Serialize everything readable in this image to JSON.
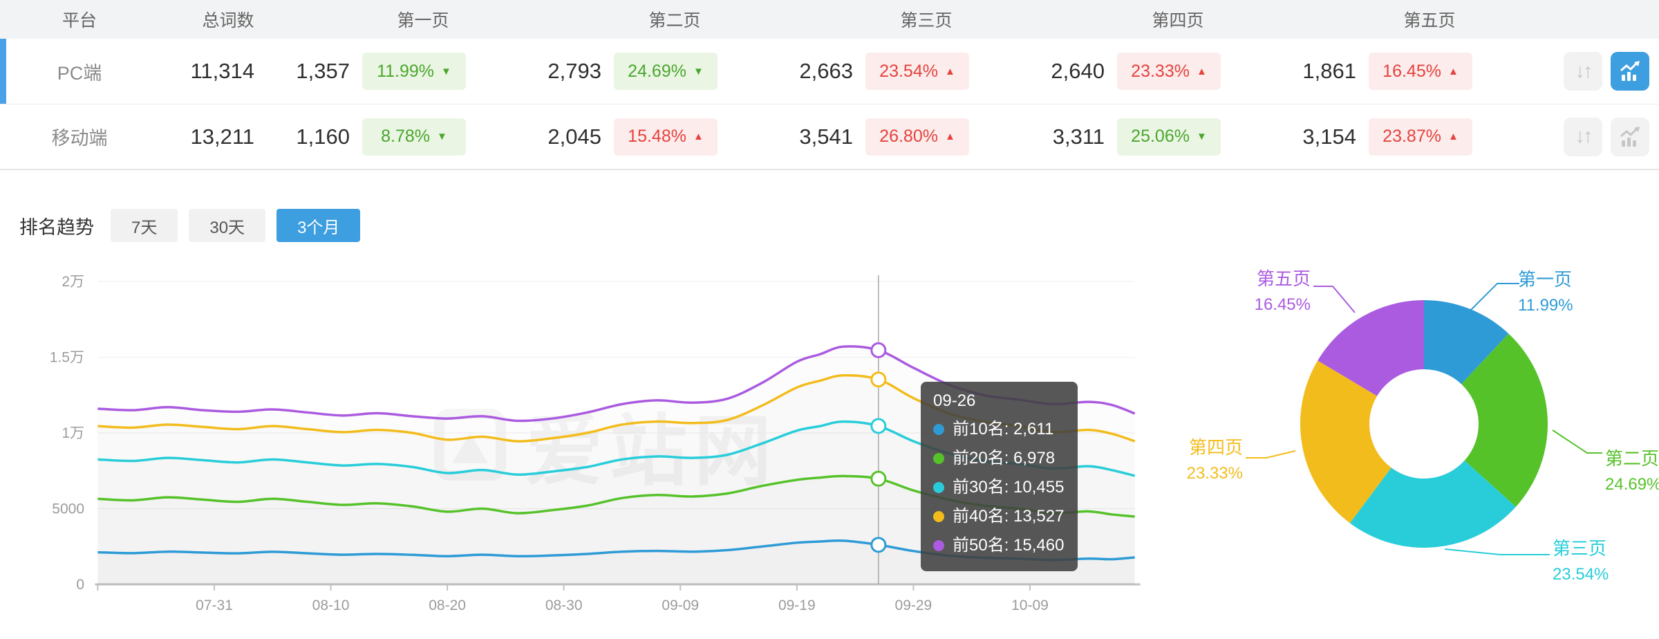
{
  "table": {
    "headers": [
      "平台",
      "总词数",
      "第一页",
      "第二页",
      "第三页",
      "第四页",
      "第五页"
    ],
    "rows": [
      {
        "platform": "PC端",
        "total": "11,314",
        "selected": true,
        "pages": [
          {
            "count": "1,357",
            "pct": "11.99%",
            "dir": "down",
            "tone": "green"
          },
          {
            "count": "2,793",
            "pct": "24.69%",
            "dir": "down",
            "tone": "green"
          },
          {
            "count": "2,663",
            "pct": "23.54%",
            "dir": "up",
            "tone": "red"
          },
          {
            "count": "2,640",
            "pct": "23.33%",
            "dir": "up",
            "tone": "red"
          },
          {
            "count": "1,861",
            "pct": "16.45%",
            "dir": "up",
            "tone": "red"
          }
        ],
        "actions": {
          "sort_active": false,
          "trend_active": true
        }
      },
      {
        "platform": "移动端",
        "total": "13,211",
        "selected": false,
        "pages": [
          {
            "count": "1,160",
            "pct": "8.78%",
            "dir": "down",
            "tone": "green"
          },
          {
            "count": "2,045",
            "pct": "15.48%",
            "dir": "up",
            "tone": "red"
          },
          {
            "count": "3,541",
            "pct": "26.80%",
            "dir": "up",
            "tone": "red"
          },
          {
            "count": "3,311",
            "pct": "25.06%",
            "dir": "down",
            "tone": "green"
          },
          {
            "count": "3,154",
            "pct": "23.87%",
            "dir": "up",
            "tone": "red"
          }
        ],
        "actions": {
          "sort_active": false,
          "trend_active": false
        }
      }
    ]
  },
  "trend": {
    "title": "排名趋势",
    "tabs": [
      {
        "label": "7天",
        "active": false
      },
      {
        "label": "30天",
        "active": false
      },
      {
        "label": "3个月",
        "active": true
      }
    ]
  },
  "tooltip": {
    "title": "09-26",
    "items": [
      {
        "label": "前10名",
        "value": "2,611",
        "text": "前10名: 2,611",
        "color": "#2e9bd6"
      },
      {
        "label": "前20名",
        "value": "6,978",
        "text": "前20名: 6,978",
        "color": "#56c22a"
      },
      {
        "label": "前30名",
        "value": "10,455",
        "text": "前30名: 10,455",
        "color": "#28cdd9"
      },
      {
        "label": "前40名",
        "value": "13,527",
        "text": "前40名: 13,527",
        "color": "#f3bc1d"
      },
      {
        "label": "前50名",
        "value": "15,460",
        "text": "前50名: 15,460",
        "color": "#aa5be0"
      }
    ]
  },
  "watermark": "爱站网",
  "colors": {
    "accent": "#3d9ee0",
    "badge_green_text": "#4ba62f",
    "badge_green_bg": "#eaf6e3",
    "badge_red_text": "#e5433e",
    "badge_red_bg": "#fcecec",
    "selected_row_bar": "#4ba1e8"
  },
  "chart_data": [
    {
      "type": "line",
      "title": "排名趋势（3个月）",
      "grid": true,
      "legend_position": "none",
      "x_axis": {
        "tick_labels": [
          "07-31",
          "08-10",
          "08-20",
          "08-30",
          "09-09",
          "09-19",
          "09-29",
          "10-09"
        ],
        "tick_days": [
          10,
          20,
          30,
          40,
          50,
          60,
          70,
          80
        ],
        "day_range": [
          0,
          89
        ]
      },
      "y_axis": {
        "tick_labels": [
          "0",
          "5000",
          "1万",
          "1.5万",
          "2万"
        ],
        "tick_values": [
          0,
          5000,
          10000,
          15000,
          20000
        ],
        "range": [
          0,
          20000
        ]
      },
      "highlight": {
        "date": "09-26",
        "day": 67
      },
      "days": [
        0,
        3,
        6,
        9,
        12,
        15,
        18,
        21,
        24,
        27,
        30,
        33,
        36,
        39,
        42,
        45,
        48,
        51,
        54,
        57,
        60,
        62,
        64,
        67,
        70,
        73,
        76,
        79,
        82,
        85,
        87,
        89
      ],
      "series": [
        {
          "name": "前10名",
          "color": "#2e9bd6",
          "values": [
            2120,
            2060,
            2160,
            2100,
            2050,
            2150,
            2050,
            1960,
            2010,
            1950,
            1860,
            1960,
            1860,
            1910,
            2010,
            2160,
            2210,
            2160,
            2260,
            2500,
            2750,
            2830,
            2880,
            2611,
            2200,
            1900,
            1760,
            1700,
            1610,
            1700,
            1660,
            1780
          ]
        },
        {
          "name": "前20名",
          "color": "#56c22a",
          "values": [
            5650,
            5550,
            5750,
            5600,
            5450,
            5650,
            5450,
            5250,
            5350,
            5150,
            4800,
            5000,
            4700,
            4900,
            5200,
            5700,
            5900,
            5800,
            6000,
            6500,
            6900,
            7050,
            7150,
            6978,
            6200,
            5600,
            5200,
            5000,
            4700,
            4820,
            4620,
            4475
          ]
        },
        {
          "name": "前30名",
          "color": "#28cdd9",
          "values": [
            8250,
            8150,
            8350,
            8200,
            8050,
            8250,
            8050,
            7850,
            7950,
            7750,
            7350,
            7550,
            7250,
            7450,
            7750,
            8250,
            8450,
            8350,
            8550,
            9300,
            10150,
            10450,
            10750,
            10455,
            9450,
            8650,
            8150,
            7950,
            7650,
            7800,
            7550,
            7170
          ]
        },
        {
          "name": "前40名",
          "color": "#f3bc1d",
          "values": [
            10450,
            10350,
            10550,
            10400,
            10250,
            10450,
            10250,
            10050,
            10200,
            10000,
            9550,
            9750,
            9450,
            9650,
            10000,
            10550,
            10750,
            10650,
            10850,
            11800,
            13000,
            13450,
            13800,
            13527,
            12300,
            11300,
            10750,
            10450,
            10050,
            10200,
            9950,
            9450
          ]
        },
        {
          "name": "前50名",
          "color": "#aa5be0",
          "values": [
            11600,
            11500,
            11700,
            11500,
            11400,
            11550,
            11350,
            11150,
            11300,
            11100,
            10950,
            11100,
            10800,
            10950,
            11350,
            11900,
            12150,
            12000,
            12250,
            13300,
            14700,
            15200,
            15700,
            15460,
            14300,
            13200,
            12500,
            12200,
            11900,
            12050,
            11850,
            11280
          ]
        }
      ]
    },
    {
      "type": "pie",
      "donut": true,
      "inner_radius_ratio": 0.44,
      "start_angle_deg": 0,
      "clockwise": true,
      "slices": [
        {
          "label": "第一页",
          "pct": 11.99,
          "pct_text": "11.99%",
          "color": "#2e9bd6"
        },
        {
          "label": "第二页",
          "pct": 24.69,
          "pct_text": "24.69%",
          "color": "#56c22a"
        },
        {
          "label": "第三页",
          "pct": 23.54,
          "pct_text": "23.54%",
          "color": "#28cdd9"
        },
        {
          "label": "第四页",
          "pct": 23.33,
          "pct_text": "23.33%",
          "color": "#f3bc1d"
        },
        {
          "label": "第五页",
          "pct": 16.45,
          "pct_text": "16.45%",
          "color": "#aa5be0"
        }
      ]
    }
  ]
}
